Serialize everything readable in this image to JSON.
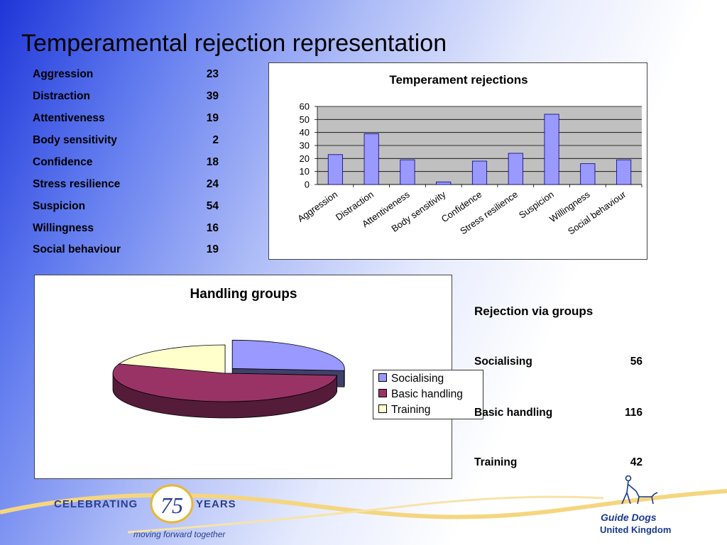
{
  "slide_title": "Temperamental rejection representation",
  "table": [
    {
      "label": "Aggression",
      "value": "23"
    },
    {
      "label": "Distraction",
      "value": "39"
    },
    {
      "label": "Attentiveness",
      "value": "19"
    },
    {
      "label": "Body sensitivity",
      "value": "2"
    },
    {
      "label": "Confidence",
      "value": "18"
    },
    {
      "label": "Stress resilience",
      "value": "24"
    },
    {
      "label": "Suspicion",
      "value": "54"
    },
    {
      "label": "Willingness",
      "value": "16"
    },
    {
      "label": "Social behaviour",
      "value": "19"
    }
  ],
  "groups": {
    "heading": "Rejection via groups",
    "rows": [
      {
        "label": "Socialising",
        "value": "56"
      },
      {
        "label": "Basic handling",
        "value": "116"
      },
      {
        "label": "Training",
        "value": "42"
      }
    ]
  },
  "chart_data": [
    {
      "type": "bar",
      "title": "Temperament rejections",
      "categories": [
        "Aggression",
        "Distraction",
        "Attentiveness",
        "Body sensitivity",
        "Confidence",
        "Stress resilience",
        "Suspicion",
        "Willingness",
        "Social behaviour"
      ],
      "values": [
        23,
        39,
        19,
        2,
        18,
        24,
        54,
        16,
        19
      ],
      "ylim": [
        0,
        60
      ],
      "yticks": [
        0,
        10,
        20,
        30,
        40,
        50,
        60
      ],
      "grid": true,
      "legend": "none",
      "colors": {
        "bar": "#9999ff",
        "plot_bg": "#c0c0c0"
      }
    },
    {
      "type": "pie",
      "title": "Handling groups",
      "labels": [
        "Socialising",
        "Basic handling",
        "Training"
      ],
      "values": [
        56,
        116,
        42
      ],
      "legend": "right",
      "colors": [
        "#9999ff",
        "#993366",
        "#ffffcc"
      ]
    }
  ],
  "footer": {
    "celebrating": "CELEBRATING",
    "number": "75",
    "years": "YEARS",
    "tagline": "moving forward together",
    "org_line1": "Guide Dogs",
    "org_line2": "United Kingdom"
  }
}
